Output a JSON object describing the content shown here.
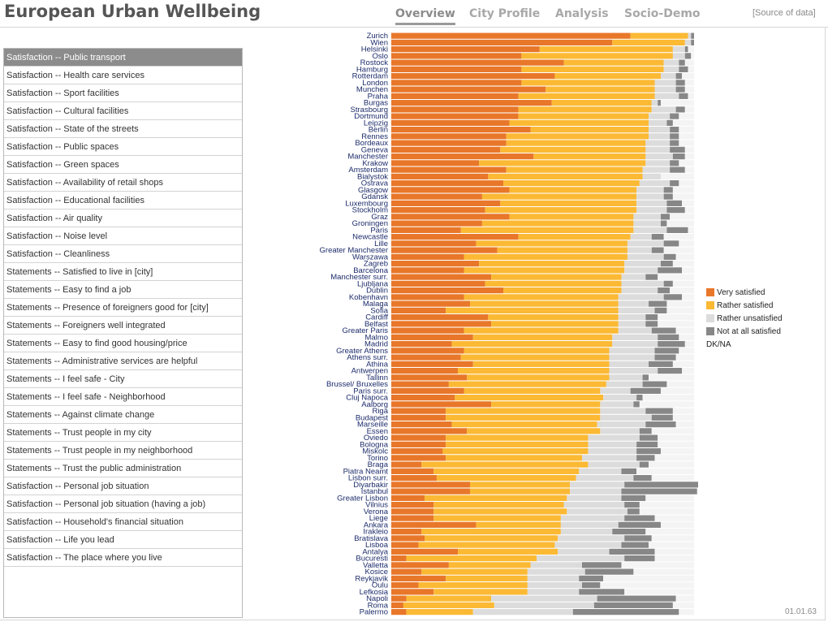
{
  "app": {
    "title": "European Urban Wellbeing"
  },
  "nav": {
    "tabs": [
      {
        "label": "Overview",
        "active": true
      },
      {
        "label": "City Profile",
        "active": false
      },
      {
        "label": "Analysis",
        "active": false
      },
      {
        "label": "Socio-Demo",
        "active": false
      }
    ],
    "source_link": "[Source of data]"
  },
  "sidebar": {
    "selected_index": 0,
    "items": [
      "Satisfaction -- Public transport",
      "Satisfaction -- Health care services",
      "Satisfaction -- Sport facilities",
      "Satisfaction -- Cultural facilities",
      "Satisfaction -- State of the streets",
      "Satisfaction -- Public spaces",
      "Satisfaction -- Green spaces",
      "Satisfaction -- Availability of retail shops",
      "Satisfaction -- Educational facilities",
      "Satisfaction -- Air quality",
      "Satisfaction -- Noise level",
      "Satisfaction -- Cleanliness",
      "Statements -- Satisfied to live in [city]",
      "Statements -- Easy to find a job",
      "Statements -- Presence of foreigners good for [city]",
      "Statements -- Foreigners well integrated",
      "Statements -- Easy to find good housing/price",
      "Statements -- Administrative services are helpful",
      "Statements -- I feel safe - City",
      "Statements -- I feel safe - Neighborhood",
      "Statements -- Against climate change",
      "Statements -- Trust people in my city",
      "Statements -- Trust people in my neighborhood",
      "Statements -- Trust the public administration",
      "Satisfaction -- Personal job situation",
      "Satisfaction -- Personal job situation (having a job)",
      "Satisfaction -- Household's financial situation",
      "Satisfaction -- Life you lead",
      "Satisfaction -- The place where you live"
    ]
  },
  "legend": {
    "items": [
      {
        "label": "Very satisfied",
        "color": "#e8772a"
      },
      {
        "label": "Rather satisfied",
        "color": "#fbb934"
      },
      {
        "label": "Rather unsatisfied",
        "color": "#dcdcdc"
      },
      {
        "label": "Not at all satisfied",
        "color": "#878787"
      },
      {
        "label": "DK/NA",
        "color": null
      }
    ]
  },
  "footer": {
    "version": "01.01.63"
  },
  "chart_data": {
    "type": "bar",
    "orientation": "horizontal",
    "stacked": true,
    "unit": "percent",
    "xlim": [
      0,
      100
    ],
    "series_order": [
      "Very satisfied",
      "Rather satisfied",
      "Rather unsatisfied",
      "Not at all satisfied",
      "DK/NA"
    ],
    "colors": [
      "#e8772a",
      "#fbb934",
      "#dcdcdc",
      "#878787",
      "#f4f4f4"
    ],
    "rows": [
      {
        "city": "Zurich",
        "values": [
          79,
          19,
          1,
          1,
          0
        ]
      },
      {
        "city": "Wien",
        "values": [
          73,
          24,
          2,
          1,
          0
        ]
      },
      {
        "city": "Helsinki",
        "values": [
          49,
          44,
          4,
          1,
          2
        ]
      },
      {
        "city": "Oslo",
        "values": [
          43,
          50,
          4,
          2,
          1
        ]
      },
      {
        "city": "Rostock",
        "values": [
          57,
          33,
          5,
          2,
          3
        ]
      },
      {
        "city": "Hamburg",
        "values": [
          43,
          47,
          5,
          3,
          2
        ]
      },
      {
        "city": "Rotterdam",
        "values": [
          54,
          35,
          5,
          2,
          4
        ]
      },
      {
        "city": "London",
        "values": [
          43,
          44,
          7,
          3,
          3
        ]
      },
      {
        "city": "Munchen",
        "values": [
          51,
          36,
          7,
          3,
          3
        ]
      },
      {
        "city": "Praha",
        "values": [
          42,
          45,
          8,
          3,
          2
        ]
      },
      {
        "city": "Burgas",
        "values": [
          53,
          33,
          2,
          1,
          11
        ]
      },
      {
        "city": "Strasbourg",
        "values": [
          42,
          44,
          8,
          3,
          3
        ]
      },
      {
        "city": "Dortmund",
        "values": [
          42,
          43,
          7,
          3,
          5
        ]
      },
      {
        "city": "Leipzig",
        "values": [
          39,
          46,
          6,
          2,
          7
        ]
      },
      {
        "city": "Berlin",
        "values": [
          46,
          39,
          7,
          3,
          5
        ]
      },
      {
        "city": "Rennes",
        "values": [
          38,
          47,
          7,
          3,
          5
        ]
      },
      {
        "city": "Bordeaux",
        "values": [
          38,
          46,
          8,
          3,
          5
        ]
      },
      {
        "city": "Geneva",
        "values": [
          36,
          48,
          8,
          5,
          3
        ]
      },
      {
        "city": "Manchester",
        "values": [
          47,
          37,
          9,
          4,
          3
        ]
      },
      {
        "city": "Krakow",
        "values": [
          29,
          55,
          8,
          3,
          5
        ]
      },
      {
        "city": "Amsterdam",
        "values": [
          38,
          45,
          9,
          5,
          3
        ]
      },
      {
        "city": "Bialystok",
        "values": [
          32,
          51,
          6,
          0,
          11
        ]
      },
      {
        "city": "Ostrava",
        "values": [
          37,
          45,
          10,
          3,
          5
        ]
      },
      {
        "city": "Glasgow",
        "values": [
          39,
          42,
          9,
          3,
          7
        ]
      },
      {
        "city": "Gdansk",
        "values": [
          30,
          51,
          9,
          3,
          7
        ]
      },
      {
        "city": "Luxembourg",
        "values": [
          36,
          45,
          10,
          5,
          4
        ]
      },
      {
        "city": "Stockholm",
        "values": [
          31,
          50,
          10,
          6,
          3
        ]
      },
      {
        "city": "Graz",
        "values": [
          39,
          41,
          9,
          3,
          8
        ]
      },
      {
        "city": "Groningen",
        "values": [
          30,
          50,
          9,
          2,
          9
        ]
      },
      {
        "city": "Paris",
        "values": [
          23,
          57,
          11,
          7,
          2
        ]
      },
      {
        "city": "Newcastle",
        "values": [
          42,
          37,
          7,
          4,
          10
        ]
      },
      {
        "city": "Lille",
        "values": [
          28,
          50,
          12,
          5,
          5
        ]
      },
      {
        "city": "Greater Manchester",
        "values": [
          35,
          43,
          8,
          4,
          10
        ]
      },
      {
        "city": "Warszawa",
        "values": [
          24,
          54,
          12,
          4,
          6
        ]
      },
      {
        "city": "Zagreb",
        "values": [
          29,
          48,
          12,
          4,
          7
        ]
      },
      {
        "city": "Barcelona",
        "values": [
          24,
          53,
          11,
          8,
          4
        ]
      },
      {
        "city": "Manchester surr.",
        "values": [
          33,
          43,
          8,
          4,
          12
        ]
      },
      {
        "city": "Ljubljana",
        "values": [
          31,
          45,
          14,
          3,
          7
        ]
      },
      {
        "city": "Dublin",
        "values": [
          37,
          39,
          12,
          4,
          8
        ]
      },
      {
        "city": "Kobenhavn",
        "values": [
          24,
          51,
          15,
          6,
          4
        ]
      },
      {
        "city": "Malaga",
        "values": [
          26,
          49,
          10,
          6,
          9
        ]
      },
      {
        "city": "Sofia",
        "values": [
          18,
          57,
          12,
          4,
          9
        ]
      },
      {
        "city": "Cardiff",
        "values": [
          32,
          43,
          9,
          4,
          12
        ]
      },
      {
        "city": "Belfast",
        "values": [
          33,
          42,
          9,
          4,
          12
        ]
      },
      {
        "city": "Greater Paris",
        "values": [
          24,
          51,
          11,
          8,
          6
        ]
      },
      {
        "city": "Malmo",
        "values": [
          27,
          46,
          15,
          7,
          5
        ]
      },
      {
        "city": "Madrid",
        "values": [
          20,
          53,
          15,
          9,
          3
        ]
      },
      {
        "city": "Greater Athens",
        "values": [
          24,
          48,
          15,
          8,
          5
        ]
      },
      {
        "city": "Athens surr.",
        "values": [
          23,
          49,
          15,
          7,
          6
        ]
      },
      {
        "city": "Athina",
        "values": [
          27,
          45,
          13,
          8,
          7
        ]
      },
      {
        "city": "Antwerpen",
        "values": [
          22,
          50,
          16,
          8,
          4
        ]
      },
      {
        "city": "Tallinn",
        "values": [
          25,
          47,
          11,
          2,
          15
        ]
      },
      {
        "city": "Brussel/ Bruxelles",
        "values": [
          19,
          52,
          12,
          8,
          9
        ]
      },
      {
        "city": "Paris surr.",
        "values": [
          24,
          45,
          10,
          10,
          11
        ]
      },
      {
        "city": "Cluj Napoca",
        "values": [
          21,
          49,
          11,
          2,
          17
        ]
      },
      {
        "city": "Aalborg",
        "values": [
          33,
          36,
          11,
          2,
          18
        ]
      },
      {
        "city": "Riga",
        "values": [
          18,
          51,
          15,
          9,
          7
        ]
      },
      {
        "city": "Budapest",
        "values": [
          18,
          51,
          17,
          7,
          7
        ]
      },
      {
        "city": "Marseille",
        "values": [
          20,
          48,
          16,
          10,
          6
        ]
      },
      {
        "city": "Essen",
        "values": [
          25,
          44,
          13,
          4,
          14
        ]
      },
      {
        "city": "Oviedo",
        "values": [
          18,
          47,
          17,
          6,
          12
        ]
      },
      {
        "city": "Bologna",
        "values": [
          18,
          47,
          16,
          7,
          12
        ]
      },
      {
        "city": "Miskolc",
        "values": [
          17,
          48,
          16,
          8,
          11
        ]
      },
      {
        "city": "Torino",
        "values": [
          18,
          45,
          18,
          6,
          13
        ]
      },
      {
        "city": "Braga",
        "values": [
          10,
          55,
          17,
          3,
          15
        ]
      },
      {
        "city": "Piatra Neamt",
        "values": [
          14,
          48,
          14,
          5,
          19
        ]
      },
      {
        "city": "Lisbon surr.",
        "values": [
          15,
          46,
          19,
          6,
          14
        ]
      },
      {
        "city": "Diyarbakir",
        "values": [
          26,
          33,
          18,
          25,
          0
        ]
      },
      {
        "city": "Istanbul",
        "values": [
          26,
          33,
          17,
          25,
          0
        ]
      },
      {
        "city": "Greater Lisbon",
        "values": [
          11,
          47,
          18,
          8,
          16
        ]
      },
      {
        "city": "Vilnius",
        "values": [
          14,
          43,
          20,
          5,
          18
        ]
      },
      {
        "city": "Verona",
        "values": [
          14,
          44,
          20,
          4,
          18
        ]
      },
      {
        "city": "Liege",
        "values": [
          14,
          42,
          21,
          10,
          13
        ]
      },
      {
        "city": "Ankara",
        "values": [
          28,
          28,
          19,
          14,
          11
        ]
      },
      {
        "city": "Irakleio",
        "values": [
          10,
          46,
          17,
          11,
          16
        ]
      },
      {
        "city": "Bratislava",
        "values": [
          11,
          44,
          22,
          9,
          14
        ]
      },
      {
        "city": "Lisboa",
        "values": [
          9,
          45,
          22,
          9,
          15
        ]
      },
      {
        "city": "Antalya",
        "values": [
          22,
          33,
          17,
          15,
          13
        ]
      },
      {
        "city": "Bucuresti",
        "values": [
          5,
          43,
          29,
          10,
          13
        ]
      },
      {
        "city": "Valletta",
        "values": [
          19,
          27,
          17,
          13,
          24
        ]
      },
      {
        "city": "Kosice",
        "values": [
          10,
          35,
          19,
          16,
          20
        ]
      },
      {
        "city": "Reykjavik",
        "values": [
          18,
          27,
          17,
          8,
          30
        ]
      },
      {
        "city": "Oulu",
        "values": [
          9,
          36,
          18,
          6,
          31
        ]
      },
      {
        "city": "Lefkosia",
        "values": [
          14,
          31,
          17,
          15,
          23
        ]
      },
      {
        "city": "Napoli",
        "values": [
          5,
          28,
          35,
          26,
          6
        ]
      },
      {
        "city": "Roma",
        "values": [
          4,
          30,
          33,
          26,
          7
        ]
      },
      {
        "city": "Palermo",
        "values": [
          5,
          22,
          33,
          35,
          5
        ]
      }
    ]
  }
}
